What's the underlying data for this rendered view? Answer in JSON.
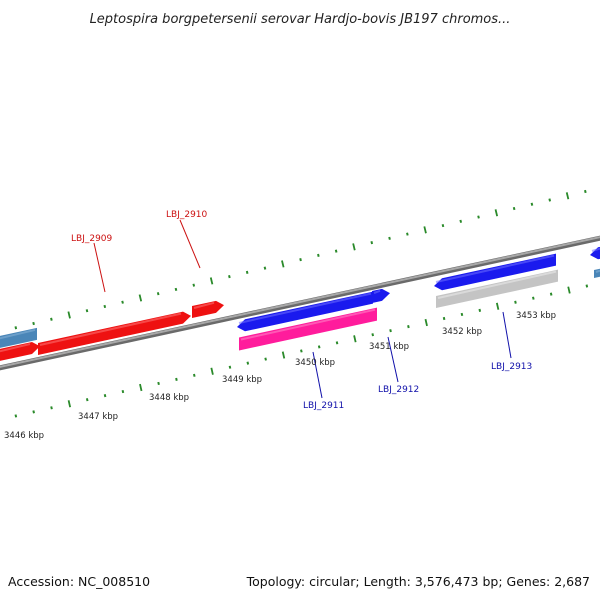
{
  "title": "Leptospira borgpetersenii serovar Hardjo-bovis JB197 chromos...",
  "footer": {
    "accession": "Accession: NC_008510",
    "summary": "Topology: circular; Length: 3,576,473 bp; Genes: 2,687"
  },
  "colors": {
    "backbone": "#8a8a8a",
    "ticks": "#2a8a2a",
    "red_gene": "#ee1111",
    "blue_gene": "#1a1aee",
    "pink_gene": "#ff1c9c",
    "grey_gene": "#c4c4c4",
    "steel_gene": "#4a86b8",
    "red_label": "#cc1111",
    "blue_label": "#1111aa"
  },
  "scale": {
    "kbp_labels": [
      "3446 kbp",
      "3447 kbp",
      "3448 kbp",
      "3449 kbp",
      "3450 kbp",
      "3451 kbp",
      "3452 kbp",
      "3453 kbp"
    ]
  },
  "genes": {
    "labels": [
      {
        "name": "LBJ_2909",
        "color": "red"
      },
      {
        "name": "LBJ_2910",
        "color": "red"
      },
      {
        "name": "LBJ_2911",
        "color": "blue"
      },
      {
        "name": "LBJ_2912",
        "color": "blue"
      },
      {
        "name": "LBJ_2913",
        "color": "blue"
      }
    ]
  }
}
